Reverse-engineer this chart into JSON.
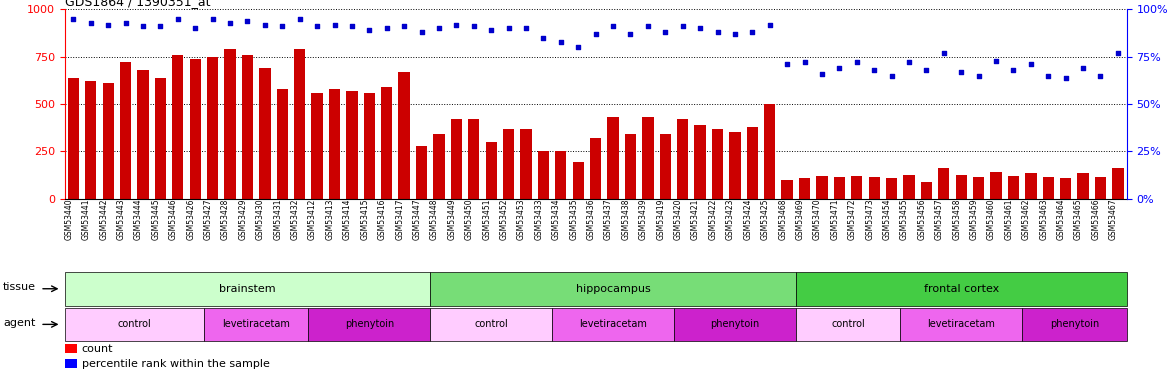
{
  "title": "GDS1864 / 1390351_at",
  "samples": [
    "GSM53440",
    "GSM53441",
    "GSM53442",
    "GSM53443",
    "GSM53444",
    "GSM53445",
    "GSM53446",
    "GSM53426",
    "GSM53427",
    "GSM53428",
    "GSM53429",
    "GSM53430",
    "GSM53431",
    "GSM53432",
    "GSM53412",
    "GSM53413",
    "GSM53414",
    "GSM53415",
    "GSM53416",
    "GSM53417",
    "GSM53447",
    "GSM53448",
    "GSM53449",
    "GSM53450",
    "GSM53451",
    "GSM53452",
    "GSM53453",
    "GSM53433",
    "GSM53434",
    "GSM53435",
    "GSM53436",
    "GSM53437",
    "GSM53438",
    "GSM53439",
    "GSM53419",
    "GSM53420",
    "GSM53421",
    "GSM53422",
    "GSM53423",
    "GSM53424",
    "GSM53425",
    "GSM53468",
    "GSM53469",
    "GSM53470",
    "GSM53471",
    "GSM53472",
    "GSM53473",
    "GSM53454",
    "GSM53455",
    "GSM53456",
    "GSM53457",
    "GSM53458",
    "GSM53459",
    "GSM53460",
    "GSM53461",
    "GSM53462",
    "GSM53463",
    "GSM53464",
    "GSM53465",
    "GSM53466",
    "GSM53467"
  ],
  "counts": [
    640,
    620,
    610,
    720,
    680,
    640,
    760,
    740,
    750,
    790,
    760,
    690,
    580,
    790,
    560,
    580,
    570,
    560,
    590,
    670,
    280,
    340,
    420,
    420,
    300,
    370,
    370,
    250,
    250,
    195,
    320,
    430,
    340,
    430,
    340,
    420,
    390,
    370,
    350,
    380,
    500,
    100,
    110,
    120,
    115,
    120,
    115,
    110,
    125,
    90,
    165,
    125,
    115,
    140,
    120,
    135,
    115,
    110,
    135,
    115,
    165
  ],
  "percentiles": [
    95,
    93,
    92,
    93,
    91,
    91,
    95,
    90,
    95,
    93,
    94,
    92,
    91,
    95,
    91,
    92,
    91,
    89,
    90,
    91,
    88,
    90,
    92,
    91,
    89,
    90,
    90,
    85,
    83,
    80,
    87,
    91,
    87,
    91,
    88,
    91,
    90,
    88,
    87,
    88,
    92,
    71,
    72,
    66,
    69,
    72,
    68,
    65,
    72,
    68,
    77,
    67,
    65,
    73,
    68,
    71,
    65,
    64,
    69,
    65,
    77
  ],
  "tissue_defs": [
    [
      "brainstem",
      0,
      21,
      "#ccffcc"
    ],
    [
      "hippocampus",
      21,
      42,
      "#77dd77"
    ],
    [
      "frontal cortex",
      42,
      61,
      "#44cc44"
    ]
  ],
  "agent_defs": [
    [
      "control",
      0,
      8,
      "#ffccff"
    ],
    [
      "levetiracetam",
      8,
      14,
      "#ee66ee"
    ],
    [
      "phenytoin",
      14,
      21,
      "#cc22cc"
    ],
    [
      "control",
      21,
      28,
      "#ffccff"
    ],
    [
      "levetiracetam",
      28,
      35,
      "#ee66ee"
    ],
    [
      "phenytoin",
      35,
      42,
      "#cc22cc"
    ],
    [
      "control",
      42,
      48,
      "#ffccff"
    ],
    [
      "levetiracetam",
      48,
      55,
      "#ee66ee"
    ],
    [
      "phenytoin",
      55,
      61,
      "#cc22cc"
    ]
  ],
  "bar_color": "#cc0000",
  "dot_color": "#0000cc",
  "ylim_left": [
    0,
    1000
  ],
  "ylim_right": [
    0,
    100
  ],
  "yticks_left": [
    0,
    250,
    500,
    750,
    1000
  ],
  "yticks_right": [
    0,
    25,
    50,
    75,
    100
  ]
}
